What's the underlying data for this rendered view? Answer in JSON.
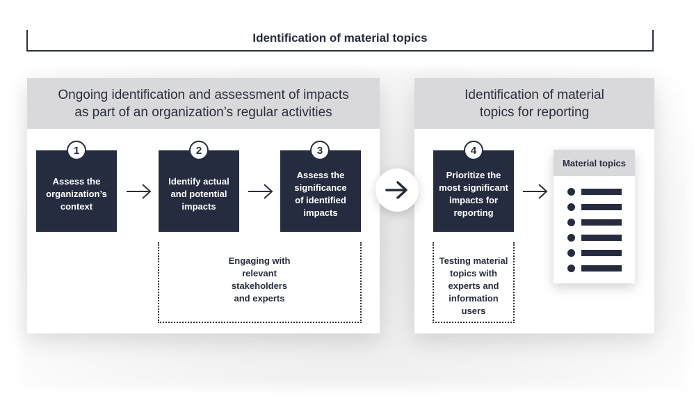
{
  "header": {
    "title": "Identification of material topics"
  },
  "left_panel": {
    "title": "Ongoing identification and assessment of impacts\nas part of an organization’s regular activities",
    "steps": [
      {
        "number": "1",
        "label": "Assess the\norganization’s\ncontext"
      },
      {
        "number": "2",
        "label": "Identify actual\nand potential\nimpacts"
      },
      {
        "number": "3",
        "label": "Assess the\nsignificance\nof identified\nimpacts"
      }
    ],
    "note": "Engaging with\nrelevant\nstakeholders\nand experts"
  },
  "right_panel": {
    "title": "Identification of material\ntopics for reporting",
    "step": {
      "number": "4",
      "label": "Prioritize the\nmost significant\nimpacts for\nreporting"
    },
    "note": "Testing material\ntopics with\nexperts and\ninformation\nusers",
    "material_topics": {
      "title": "Material topics",
      "item_count": 6
    }
  },
  "colors": {
    "navy": "#262c3f",
    "header_gray": "#d9d9db",
    "background": "#ffffff"
  }
}
